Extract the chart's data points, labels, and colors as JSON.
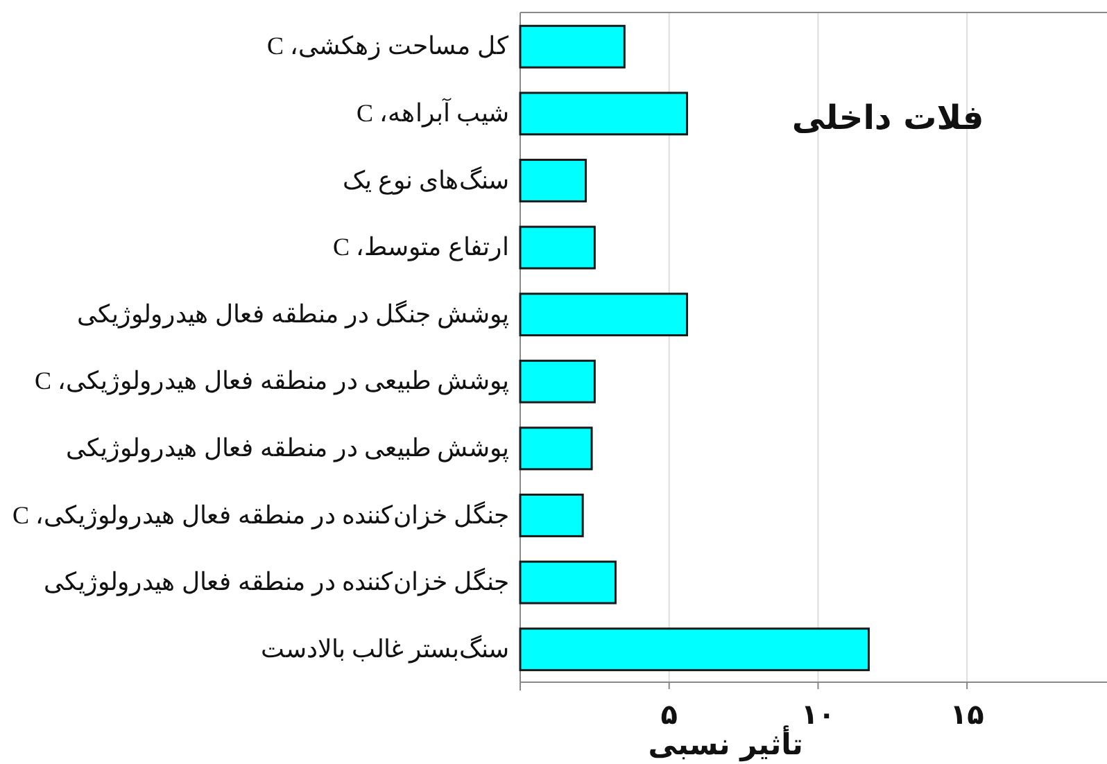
{
  "chart_data": {
    "type": "bar",
    "orientation": "horizontal",
    "title": "فلات داخلی",
    "xlabel": "تأثیر نسبی",
    "categories": [
      "کل مساحت زهکشی، C",
      "شیب آبراهه، C",
      "سنگ‌های نوع یک",
      "ارتفاع متوسط، C",
      "پوشش جنگل در منطقه فعال هیدرولوژیکی",
      "پوشش طبیعی در منطقه فعال هیدرولوژیکی، C",
      "پوشش طبیعی در منطقه فعال هیدرولوژیکی",
      "جنگل خزان‌کننده در منطقه فعال هیدرولوژیکی، C",
      "جنگل خزان‌کننده در منطقه فعال هیدرولوژیکی",
      "سنگ‌بستر غالب بالادست"
    ],
    "values": [
      3.5,
      5.6,
      2.2,
      2.5,
      5.6,
      2.5,
      2.4,
      2.1,
      3.2,
      11.7
    ],
    "color": "#00ffff",
    "xlim": [
      0,
      19.7
    ],
    "xticks": [
      {
        "value": 5,
        "label": "۵"
      },
      {
        "value": 10,
        "label": "۱۰"
      },
      {
        "value": 15,
        "label": "۱۵"
      }
    ],
    "grid": "x"
  }
}
